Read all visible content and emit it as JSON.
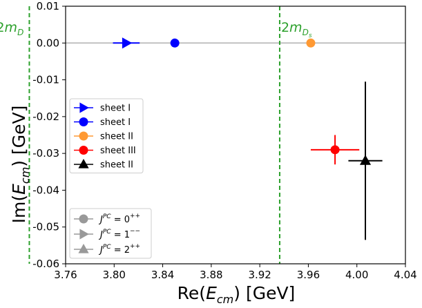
{
  "chart_data": {
    "type": "scatter",
    "xlabel_main": "Re(",
    "xlabel_var": "E",
    "xlabel_sub": "cm",
    "xlabel_tail": ") [GeV]",
    "ylabel_main": "Im(",
    "ylabel_var": "E",
    "ylabel_sub": "cm",
    "ylabel_tail": ") [GeV]",
    "xlim": [
      3.76,
      4.04
    ],
    "ylim": [
      -0.06,
      0.01
    ],
    "xticks": [
      "3.76",
      "3.80",
      "3.84",
      "3.88",
      "3.92",
      "3.96",
      "4.00",
      "4.04"
    ],
    "xtick_values": [
      3.76,
      3.8,
      3.84,
      3.88,
      3.92,
      3.96,
      4.0,
      4.04
    ],
    "yticks": [
      "0.01",
      "0.00",
      "-0.01",
      "-0.02",
      "-0.03",
      "-0.04",
      "-0.05",
      "-0.06"
    ],
    "ytick_values": [
      0.01,
      0.0,
      -0.01,
      -0.02,
      -0.03,
      -0.04,
      -0.05,
      -0.06
    ],
    "grid": false,
    "zero_line": 0.0,
    "thresholds": [
      {
        "x": 3.7301,
        "label_main": "2m",
        "label_sub": "D",
        "label_subsub": "",
        "color": "#2ca02c"
      },
      {
        "x": 3.9364,
        "label_main": "2m",
        "label_sub": "D",
        "label_subsub": "s",
        "color": "#2ca02c"
      }
    ],
    "points": [
      {
        "name": "sheet I",
        "marker": "triangle-right",
        "color": "#0000ff",
        "x": 3.81,
        "y": 0.0,
        "xerr": 0.011,
        "yerr": 0.0
      },
      {
        "name": "sheet I",
        "marker": "circle",
        "color": "#0000ff",
        "x": 3.85,
        "y": 0.0,
        "xerr": 0.0,
        "yerr": 0.0
      },
      {
        "name": "sheet II",
        "marker": "circle",
        "color": "#ff9933",
        "x": 3.962,
        "y": 0.0,
        "xerr": 0.0,
        "yerr": 0.0
      },
      {
        "name": "sheet III",
        "marker": "circle",
        "color": "#ff0000",
        "x": 3.982,
        "y": -0.029,
        "xerr": 0.02,
        "yerr": 0.004
      },
      {
        "name": "sheet II",
        "marker": "triangle-up",
        "color": "#000000",
        "x": 4.007,
        "y": -0.032,
        "xerr": 0.014,
        "yerr": 0.0215
      }
    ],
    "legend_top": {
      "placement": "center-left",
      "entries": [
        {
          "label": "sheet I",
          "marker": "triangle-right",
          "color": "#0000ff"
        },
        {
          "label": "sheet I",
          "marker": "circle",
          "color": "#0000ff"
        },
        {
          "label": "sheet II",
          "marker": "circle",
          "color": "#ff9933"
        },
        {
          "label": "sheet III",
          "marker": "circle",
          "color": "#ff0000"
        },
        {
          "label": "sheet II",
          "marker": "triangle-up",
          "color": "#000000"
        }
      ]
    },
    "legend_bottom": {
      "placement": "lower-left",
      "entries": [
        {
          "marker": "circle",
          "color": "#999999",
          "sym": "J",
          "sup": "PC",
          "eq": " = 0",
          "qn": "++"
        },
        {
          "marker": "triangle-right",
          "color": "#999999",
          "sym": "J",
          "sup": "PC",
          "eq": " = 1",
          "qn": "−−"
        },
        {
          "marker": "triangle-up",
          "color": "#999999",
          "sym": "J",
          "sup": "PC",
          "eq": " = 2",
          "qn": "++"
        }
      ]
    }
  }
}
